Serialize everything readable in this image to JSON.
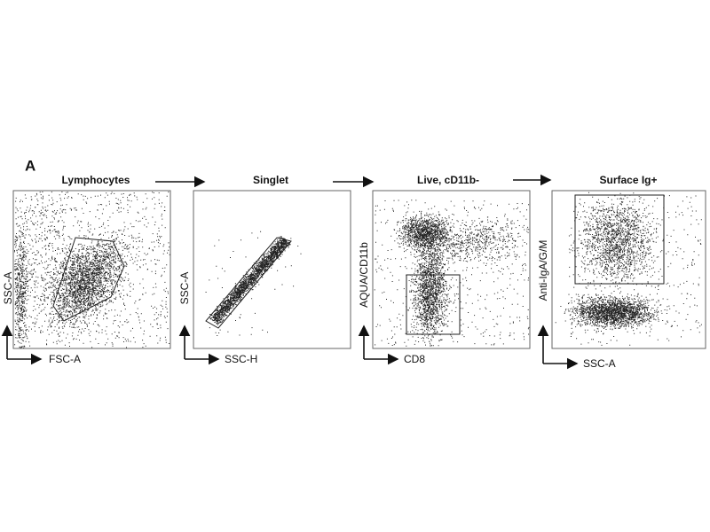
{
  "figure_label": "A",
  "panels": [
    {
      "title": "Lymphocytes",
      "y_axis": "SSC-A",
      "x_axis": "FSC-A"
    },
    {
      "title": "Singlet",
      "y_axis": "SSC-A",
      "x_axis": "SSC-H"
    },
    {
      "title": "Live, cD11b-",
      "y_axis": "AQUA/CD11b",
      "x_axis": "CD8"
    },
    {
      "title": "Surface Ig+",
      "y_axis": "Anti-IgA/G/M",
      "x_axis": "SSC-A"
    }
  ]
}
